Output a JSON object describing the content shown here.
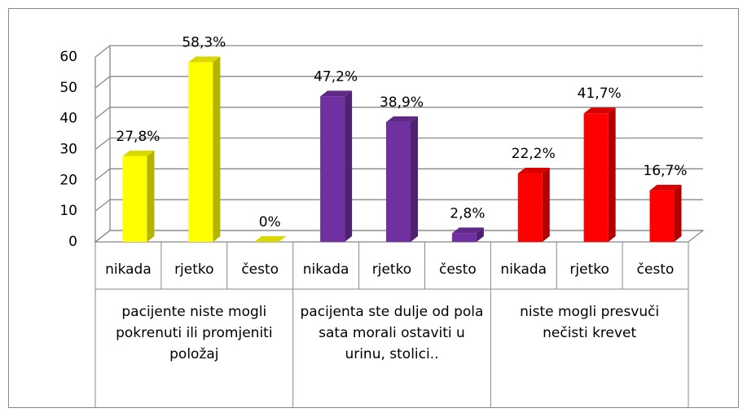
{
  "chart_data": {
    "type": "bar3d",
    "ylim": [
      0,
      60
    ],
    "yticks": [
      0,
      10,
      20,
      30,
      40,
      50,
      60
    ],
    "grid": true,
    "series": [
      {
        "name": "pacijente niste mogli pokrenuti ili promjeniti položaj",
        "color": "#ffff00",
        "categories": [
          "nikada",
          "rjetko",
          "često"
        ],
        "values": [
          27.8,
          58.3,
          0
        ],
        "value_labels": [
          "27,8%",
          "58,3%",
          "0%"
        ]
      },
      {
        "name": "pacijenta ste dulje od pola sata morali ostaviti u urinu, stolici..",
        "color": "#7030a0",
        "categories": [
          "nikada",
          "rjetko",
          "često"
        ],
        "values": [
          47.2,
          38.9,
          2.8
        ],
        "value_labels": [
          "47,2%",
          "38,9%",
          "2,8%"
        ]
      },
      {
        "name": "niste mogli presvuči nečisti krevet",
        "color": "#ff0000",
        "categories": [
          "nikada",
          "rjetko",
          "često"
        ],
        "values": [
          22.2,
          41.7,
          16.7
        ],
        "value_labels": [
          "22,2%",
          "41,7%",
          "16,7%"
        ]
      }
    ]
  }
}
